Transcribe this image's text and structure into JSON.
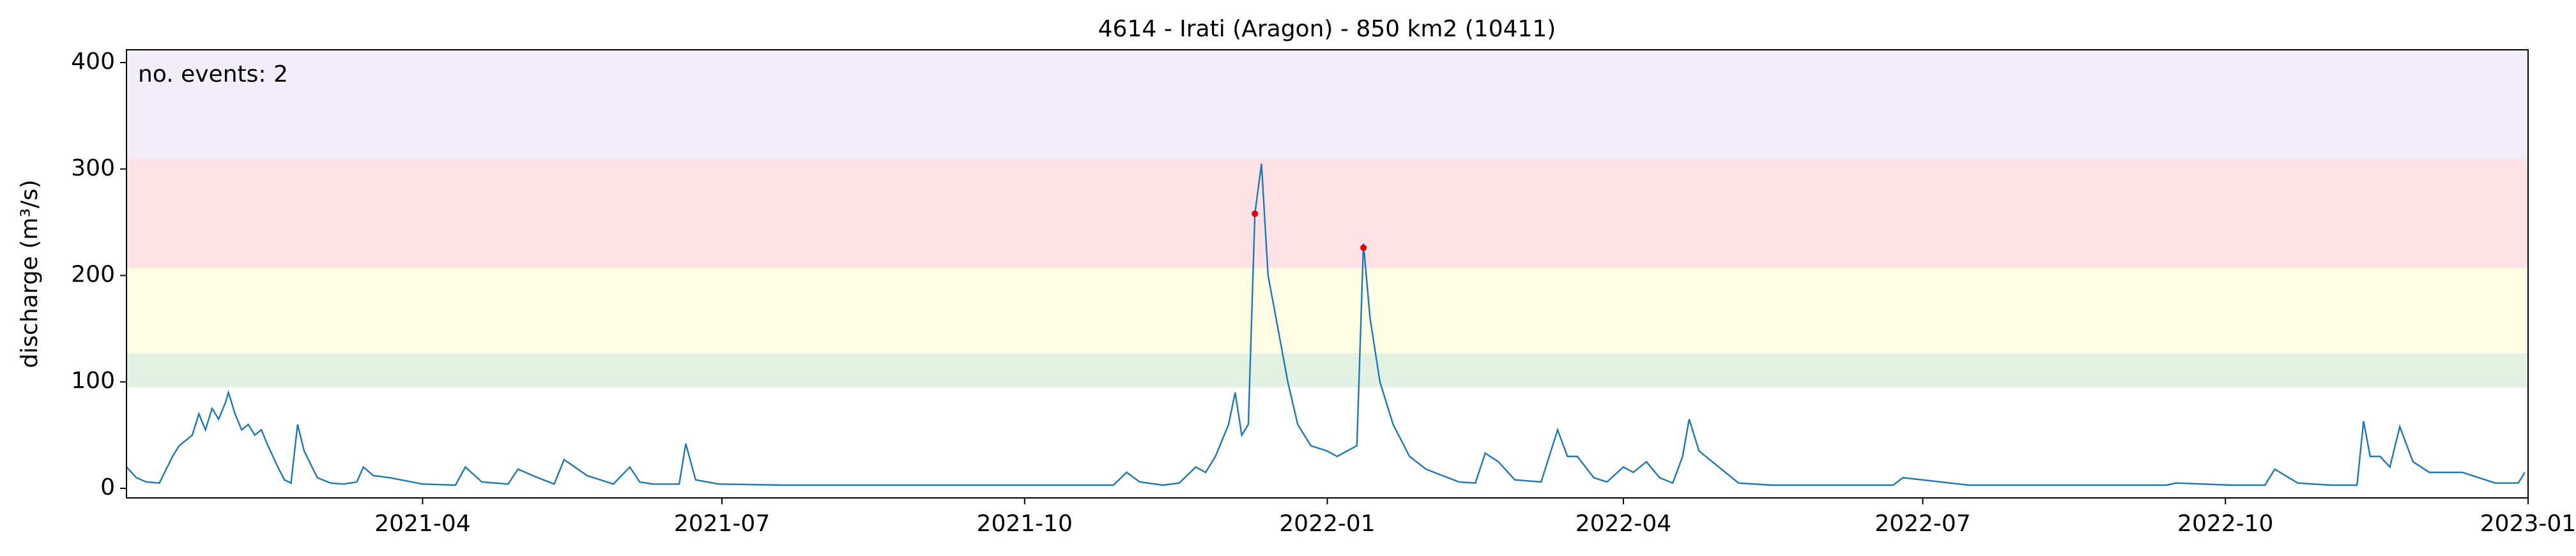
{
  "chart_data": {
    "type": "line",
    "title": "4614 - Irati (Aragon) - 850 km2 (10411)",
    "ylabel": "discharge (m³/s)",
    "annotation": "no. events: 2",
    "annotation_color": "#e00000",
    "x": [
      0,
      3,
      6,
      10,
      14,
      16,
      18,
      20,
      22,
      24,
      26,
      28,
      30,
      31,
      33,
      35,
      37,
      39,
      41,
      43,
      46,
      48,
      50,
      52,
      54,
      58,
      62,
      66,
      70,
      72,
      75,
      80,
      90,
      100,
      103,
      108,
      116,
      119,
      125,
      130,
      133,
      140,
      148,
      153,
      156,
      160,
      168,
      170,
      173,
      180,
      200,
      230,
      260,
      290,
      300,
      304,
      308,
      315,
      320,
      325,
      328,
      331,
      333,
      335,
      337,
      339,
      341,
      343,
      345,
      347,
      350,
      353,
      356,
      360,
      365,
      368,
      371,
      374,
      376,
      378,
      381,
      385,
      390,
      395,
      400,
      405,
      410,
      413,
      417,
      422,
      430,
      435,
      438,
      441,
      446,
      450,
      455,
      458,
      462,
      466,
      470,
      473,
      475,
      478,
      482,
      490,
      500,
      520,
      537,
      540,
      560,
      600,
      620,
      623,
      640,
      650,
      653,
      660,
      670,
      678,
      680,
      682,
      685,
      688,
      691,
      695,
      700,
      705,
      710,
      720,
      727,
      729
    ],
    "values": [
      20,
      10,
      6,
      5,
      30,
      40,
      45,
      50,
      70,
      55,
      75,
      65,
      80,
      90,
      70,
      55,
      60,
      50,
      55,
      40,
      20,
      8,
      5,
      60,
      35,
      10,
      5,
      4,
      6,
      20,
      12,
      10,
      4,
      3,
      20,
      6,
      4,
      18,
      10,
      4,
      27,
      12,
      4,
      20,
      6,
      4,
      4,
      42,
      8,
      4,
      3,
      3,
      3,
      3,
      3,
      15,
      6,
      3,
      5,
      20,
      15,
      30,
      45,
      60,
      90,
      50,
      60,
      258,
      305,
      200,
      150,
      100,
      60,
      40,
      35,
      30,
      35,
      40,
      230,
      160,
      100,
      60,
      30,
      18,
      12,
      6,
      5,
      33,
      25,
      8,
      6,
      55,
      30,
      30,
      10,
      6,
      20,
      15,
      25,
      10,
      5,
      30,
      65,
      35,
      25,
      5,
      3,
      3,
      3,
      10,
      3,
      3,
      3,
      5,
      3,
      3,
      18,
      5,
      3,
      3,
      63,
      30,
      30,
      20,
      58,
      25,
      15,
      15,
      15,
      5,
      5,
      15
    ],
    "color": "#1f77b4",
    "events": {
      "x": [
        343,
        376
      ],
      "values": [
        258,
        226
      ],
      "color": "#e00000"
    },
    "bands": [
      {
        "from": 95,
        "to": 127,
        "color": "#e3f1e3"
      },
      {
        "from": 127,
        "to": 207,
        "color": "#fdfde3"
      },
      {
        "from": 207,
        "to": 310,
        "color": "#fde1e4"
      },
      {
        "from": 310,
        "to": 412,
        "color": "#f1eefa"
      }
    ],
    "xlim": [
      0,
      730
    ],
    "xticks": [
      {
        "value": 90,
        "label": "2021-04"
      },
      {
        "value": 181,
        "label": "2021-07"
      },
      {
        "value": 273,
        "label": "2021-10"
      },
      {
        "value": 365,
        "label": "2022-01"
      },
      {
        "value": 455,
        "label": "2022-04"
      },
      {
        "value": 546,
        "label": "2022-07"
      },
      {
        "value": 638,
        "label": "2022-10"
      },
      {
        "value": 730,
        "label": "2023-01"
      }
    ],
    "ylim": [
      -9,
      412
    ],
    "yticks": [
      0,
      100,
      200,
      300,
      400
    ]
  }
}
